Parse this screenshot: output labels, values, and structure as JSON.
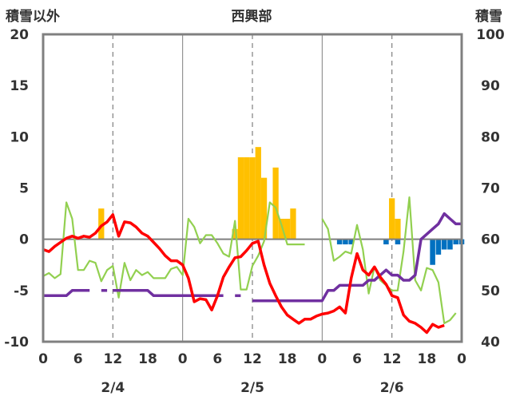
{
  "chart_data": {
    "type": "line",
    "title": "西興部",
    "left_axis_label": "積雪以外",
    "right_axis_label": "積雪",
    "left_ylim": [
      -10,
      20
    ],
    "right_ylim": [
      40,
      100
    ],
    "left_ticks": [
      "20",
      "15",
      "10",
      "5",
      "0",
      "-5",
      "-10"
    ],
    "right_ticks": [
      "100",
      "90",
      "80",
      "70",
      "60",
      "50",
      "40"
    ],
    "x_ticks": [
      "0",
      "6",
      "12",
      "18",
      "0",
      "6",
      "12",
      "18",
      "0",
      "6",
      "12",
      "18",
      "0"
    ],
    "date_labels": [
      "2/4",
      "2/5",
      "2/6"
    ],
    "hours_total": 72,
    "colors": {
      "frame": "#808080",
      "temperature": "#ff0000",
      "wind": "#92d050",
      "snow_depth": "#7030a0",
      "precipitation": "#ffc000",
      "snow_change": "#0070c0"
    },
    "precipitation": [
      [
        10,
        3
      ],
      [
        33,
        1
      ],
      [
        34,
        8
      ],
      [
        35,
        8
      ],
      [
        36,
        8
      ],
      [
        37,
        9
      ],
      [
        38,
        6
      ],
      [
        40,
        7
      ],
      [
        41,
        2
      ],
      [
        42,
        2
      ],
      [
        43,
        3
      ],
      [
        60,
        4
      ],
      [
        61,
        2
      ]
    ],
    "snow_change": [
      [
        51,
        -0.5
      ],
      [
        52,
        -0.5
      ],
      [
        53,
        -0.5
      ],
      [
        59,
        -0.5
      ],
      [
        61,
        -0.5
      ],
      [
        67,
        -2.5
      ],
      [
        68,
        -1.5
      ],
      [
        69,
        -1
      ],
      [
        70,
        -1
      ],
      [
        71,
        -0.5
      ],
      [
        72,
        -0.5
      ]
    ],
    "temperature": [
      [
        0,
        -1
      ],
      [
        1,
        -1.2
      ],
      [
        2,
        -0.7
      ],
      [
        3,
        -0.3
      ],
      [
        4,
        0.1
      ],
      [
        5,
        0.3
      ],
      [
        6,
        0.1
      ],
      [
        7,
        0.3
      ],
      [
        8,
        0.2
      ],
      [
        9,
        0.6
      ],
      [
        10,
        1.3
      ],
      [
        11,
        1.7
      ],
      [
        12,
        2.4
      ],
      [
        13,
        0.3
      ],
      [
        14,
        1.7
      ],
      [
        15,
        1.6
      ],
      [
        16,
        1.2
      ],
      [
        17,
        0.6
      ],
      [
        18,
        0.3
      ],
      [
        19,
        -0.3
      ],
      [
        20,
        -0.9
      ],
      [
        21,
        -1.6
      ],
      [
        22,
        -2.1
      ],
      [
        23,
        -2.1
      ],
      [
        24,
        -2.5
      ],
      [
        25,
        -3.8
      ],
      [
        26,
        -6.1
      ],
      [
        27,
        -5.8
      ],
      [
        28,
        -5.9
      ],
      [
        29,
        -6.9
      ],
      [
        30,
        -5.5
      ],
      [
        31,
        -3.7
      ],
      [
        32,
        -2.7
      ],
      [
        33,
        -1.8
      ],
      [
        34,
        -1.7
      ],
      [
        35,
        -1.1
      ],
      [
        36,
        -0.4
      ],
      [
        37,
        -0.2
      ],
      [
        38,
        -2.5
      ],
      [
        39,
        -4.3
      ],
      [
        40,
        -5.5
      ],
      [
        41,
        -6.6
      ],
      [
        42,
        -7.4
      ],
      [
        43,
        -7.8
      ],
      [
        44,
        -8.2
      ],
      [
        45,
        -7.8
      ],
      [
        46,
        -7.8
      ],
      [
        47,
        -7.5
      ],
      [
        48,
        -7.3
      ],
      [
        49,
        -7.2
      ],
      [
        50,
        -7
      ],
      [
        51,
        -6.6
      ],
      [
        52,
        -7.2
      ],
      [
        53,
        -3.8
      ],
      [
        54,
        -1.4
      ],
      [
        55,
        -3
      ],
      [
        56,
        -3.5
      ],
      [
        57,
        -2.7
      ],
      [
        58,
        -3.7
      ],
      [
        59,
        -4.4
      ],
      [
        60,
        -5.5
      ],
      [
        61,
        -5.7
      ],
      [
        62,
        -7.4
      ],
      [
        63,
        -8
      ],
      [
        64,
        -8.2
      ],
      [
        65,
        -8.6
      ],
      [
        66,
        -9.1
      ],
      [
        67,
        -8.3
      ],
      [
        68,
        -8.6
      ],
      [
        69,
        -8.4
      ]
    ],
    "wind": [
      [
        [
          0,
          -3.6
        ],
        [
          1,
          -3.3
        ],
        [
          2,
          -3.8
        ],
        [
          3,
          -3.4
        ],
        [
          4,
          3.6
        ],
        [
          5,
          2
        ],
        [
          6,
          -3
        ],
        [
          7,
          -3
        ],
        [
          8,
          -2.1
        ],
        [
          9,
          -2.3
        ],
        [
          10,
          -4.1
        ],
        [
          11,
          -3
        ],
        [
          12,
          -2.6
        ],
        [
          13,
          -5.7
        ],
        [
          14,
          -2.3
        ],
        [
          15,
          -4
        ],
        [
          16,
          -3
        ],
        [
          17,
          -3.5
        ],
        [
          18,
          -3.2
        ],
        [
          19,
          -3.8
        ],
        [
          20,
          -3.8
        ],
        [
          21,
          -3.8
        ],
        [
          22,
          -2.9
        ],
        [
          23,
          -2.7
        ],
        [
          24,
          -3.5
        ],
        [
          25,
          2
        ],
        [
          26,
          1.2
        ],
        [
          27,
          -0.4
        ],
        [
          28,
          0.4
        ],
        [
          29,
          0.4
        ],
        [
          30,
          -0.4
        ],
        [
          31,
          -1.4
        ],
        [
          32,
          -1.7
        ],
        [
          33,
          1.8
        ],
        [
          34,
          -4.9
        ],
        [
          35,
          -4.9
        ],
        [
          36,
          -2.6
        ],
        [
          37,
          -1.6
        ],
        [
          38,
          -0.2
        ],
        [
          39,
          3.6
        ],
        [
          40,
          3.1
        ],
        [
          41,
          1.4
        ],
        [
          42,
          -0.5
        ],
        [
          43,
          -0.5
        ],
        [
          44,
          -0.5
        ],
        [
          45,
          -0.5
        ]
      ],
      [
        [
          48,
          2
        ],
        [
          49,
          1
        ],
        [
          50,
          -2.1
        ],
        [
          51,
          -1.7
        ],
        [
          52,
          -1.2
        ],
        [
          53,
          -1.4
        ],
        [
          54,
          1.4
        ],
        [
          55,
          -1
        ],
        [
          56,
          -5.3
        ],
        [
          57,
          -2.7
        ],
        [
          58,
          -4
        ],
        [
          59,
          -4.5
        ],
        [
          60,
          -5
        ],
        [
          61,
          -5
        ],
        [
          62,
          -1.2
        ],
        [
          63,
          4.1
        ],
        [
          64,
          -4
        ],
        [
          65,
          -5
        ],
        [
          66,
          -2.8
        ],
        [
          67,
          -3
        ],
        [
          68,
          -4.2
        ],
        [
          69,
          -8.2
        ],
        [
          70,
          -7.9
        ],
        [
          71,
          -7.2
        ]
      ]
    ],
    "snow_depth": [
      [
        [
          0,
          49
        ],
        [
          1,
          49
        ],
        [
          2,
          49
        ],
        [
          3,
          49
        ],
        [
          4,
          49
        ],
        [
          5,
          50
        ],
        [
          6,
          50
        ],
        [
          7,
          50
        ],
        [
          8,
          50
        ]
      ],
      [
        [
          10,
          50
        ],
        [
          11,
          50
        ]
      ],
      [
        [
          12,
          50
        ],
        [
          13,
          50
        ],
        [
          14,
          50
        ],
        [
          15,
          50
        ],
        [
          16,
          50
        ],
        [
          17,
          50
        ],
        [
          18,
          50
        ],
        [
          19,
          49
        ],
        [
          20,
          49
        ],
        [
          21,
          49
        ],
        [
          22,
          49
        ],
        [
          23,
          49
        ],
        [
          24,
          49
        ],
        [
          25,
          49
        ],
        [
          26,
          49
        ],
        [
          27,
          49
        ],
        [
          28,
          49
        ],
        [
          29,
          49
        ],
        [
          30,
          49
        ],
        [
          31,
          49
        ]
      ],
      [
        [
          33,
          49
        ],
        [
          34,
          49
        ]
      ],
      [
        [
          36,
          48
        ],
        [
          37,
          48
        ],
        [
          38,
          48
        ],
        [
          39,
          48
        ],
        [
          40,
          48
        ],
        [
          41,
          48
        ],
        [
          42,
          48
        ],
        [
          43,
          48
        ],
        [
          44,
          48
        ],
        [
          45,
          48
        ],
        [
          46,
          48
        ],
        [
          47,
          48
        ],
        [
          48,
          48
        ],
        [
          49,
          50
        ],
        [
          50,
          50
        ],
        [
          51,
          51
        ],
        [
          52,
          51
        ],
        [
          53,
          51
        ],
        [
          54,
          51
        ],
        [
          55,
          51
        ],
        [
          56,
          52
        ],
        [
          57,
          52
        ],
        [
          58,
          53
        ],
        [
          59,
          54
        ],
        [
          60,
          53
        ],
        [
          61,
          53
        ],
        [
          62,
          52
        ],
        [
          63,
          52
        ],
        [
          64,
          53
        ],
        [
          65,
          60
        ],
        [
          66,
          61
        ],
        [
          67,
          62
        ],
        [
          68,
          63
        ],
        [
          69,
          65
        ],
        [
          70,
          64
        ],
        [
          71,
          63
        ],
        [
          72,
          63
        ]
      ]
    ]
  }
}
